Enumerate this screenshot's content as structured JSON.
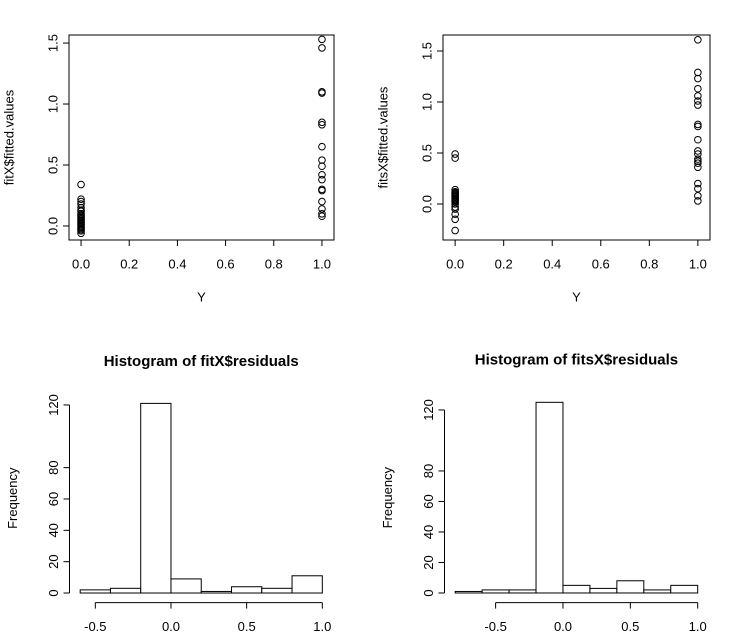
{
  "chart_data": [
    {
      "type": "scatter",
      "xlabel": "Y",
      "ylabel": "fitX$fitted.values",
      "x": [
        0,
        0,
        0,
        0,
        0,
        0,
        0,
        0,
        0,
        0,
        0,
        0,
        0,
        0,
        0,
        0,
        0,
        0,
        0,
        0,
        0,
        0,
        0,
        1,
        1,
        1,
        1,
        1,
        1,
        1,
        1,
        1,
        1,
        1,
        1,
        1,
        1,
        1,
        1,
        1
      ],
      "values": [
        0.34,
        0.22,
        0.2,
        0.18,
        0.15,
        0.13,
        0.12,
        0.1,
        0.09,
        0.08,
        0.07,
        0.06,
        0.05,
        0.04,
        0.03,
        0.02,
        0.01,
        0,
        -0.01,
        -0.02,
        -0.03,
        -0.04,
        -0.06,
        1.53,
        1.46,
        1.1,
        1.09,
        0.85,
        0.83,
        0.65,
        0.54,
        0.49,
        0.42,
        0.38,
        0.3,
        0.29,
        0.2,
        0.14,
        0.1,
        0.08
      ],
      "color": "#000000",
      "xlim": [
        -0.05,
        1.05
      ],
      "xticks": [
        {
          "value": 0,
          "label": "0.0"
        },
        0.2,
        0.4,
        0.6,
        0.8,
        {
          "value": 1,
          "label": "1.0"
        }
      ],
      "ylim": [
        -0.115,
        1.566
      ],
      "yticks": [
        {
          "value": 0,
          "label": "0.0"
        },
        0.5,
        {
          "value": 1,
          "label": "1.0"
        },
        1.5
      ]
    },
    {
      "type": "scatter",
      "xlabel": "Y",
      "ylabel": "fitsX$fitted.values",
      "x": [
        0,
        0,
        0,
        0,
        0,
        0,
        0,
        0,
        0,
        0,
        0,
        0,
        0,
        0,
        0,
        0,
        0,
        0,
        0,
        0,
        1,
        1,
        1,
        1,
        1,
        1,
        1,
        1,
        1,
        1,
        1,
        1,
        1,
        1,
        1,
        1,
        1,
        1,
        1,
        1
      ],
      "values": [
        0.49,
        0.45,
        0.14,
        0.12,
        0.11,
        0.1,
        0.09,
        0.08,
        0.07,
        0.06,
        0.05,
        0.04,
        0.03,
        0.02,
        0,
        -0.03,
        -0.05,
        -0.1,
        -0.15,
        -0.26,
        1.61,
        1.29,
        1.23,
        1.13,
        1.06,
        1.01,
        0.97,
        0.78,
        0.76,
        0.63,
        0.52,
        0.49,
        0.44,
        0.42,
        0.4,
        0.36,
        0.2,
        0.15,
        0.08,
        0.03
      ],
      "color": "#000000",
      "xlim": [
        -0.05,
        1.05
      ],
      "xticks": [
        {
          "value": 0,
          "label": "0.0"
        },
        0.2,
        0.4,
        0.6,
        0.8,
        {
          "value": 1,
          "label": "1.0"
        }
      ],
      "ylim": [
        -0.353,
        1.657
      ],
      "yticks": [
        {
          "value": 0,
          "label": "0.0"
        },
        0.5,
        {
          "value": 1,
          "label": "1.0"
        },
        1.5
      ]
    },
    {
      "type": "histogram",
      "title": "Histogram of fitX$residuals",
      "ylabel": "Frequency",
      "bins": [
        -0.6,
        -0.4,
        -0.2,
        0,
        0.2,
        0.4,
        0.6,
        0.8,
        1.0
      ],
      "counts": [
        2,
        3,
        121,
        9,
        1,
        4,
        3,
        11
      ],
      "color": "#ffffff",
      "xlim": [
        -0.664,
        1.064
      ],
      "xticks": [
        -0.5,
        {
          "value": 0,
          "label": "0.0"
        },
        0.5,
        {
          "value": 1,
          "label": "1.0"
        }
      ],
      "ylim": [
        -4.84,
        125.84
      ],
      "yticks": [
        0,
        20,
        40,
        60,
        80,
        120
      ]
    },
    {
      "type": "histogram",
      "title": "Histogram of fitsX$residuals",
      "ylabel": "Frequency",
      "bins": [
        -0.8,
        -0.6,
        -0.4,
        -0.2,
        0,
        0.2,
        0.4,
        0.6,
        0.8,
        1.0
      ],
      "counts": [
        1,
        2,
        2,
        125,
        5,
        3,
        8,
        2,
        5
      ],
      "color": "#ffffff",
      "xlim": [
        -0.872,
        1.072
      ],
      "xticks": [
        -0.5,
        {
          "value": 0,
          "label": "0.0"
        },
        0.5,
        {
          "value": 1,
          "label": "1.0"
        }
      ],
      "ylim": [
        -5,
        130
      ],
      "yticks": [
        0,
        20,
        40,
        60,
        80,
        120
      ]
    }
  ]
}
